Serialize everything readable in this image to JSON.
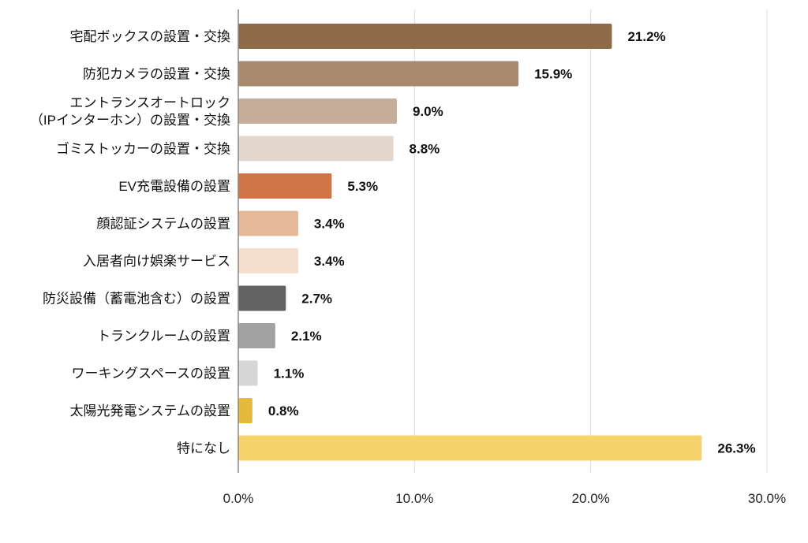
{
  "chart_data": {
    "type": "bar",
    "orientation": "horizontal",
    "title": "",
    "xlabel": "",
    "ylabel": "",
    "xlim": [
      0,
      30
    ],
    "x_ticks": [
      0,
      10,
      20,
      30
    ],
    "x_tick_labels": [
      "0.0%",
      "10.0%",
      "20.0%",
      "30.0%"
    ],
    "grid": true,
    "legend": "none",
    "categories": [
      [
        "宅配ボックスの設置・交換"
      ],
      [
        "防犯カメラの設置・交換"
      ],
      [
        "エントランスオートロック",
        "（IPインターホン）の設置・交換"
      ],
      [
        "ゴミストッカーの設置・交換"
      ],
      [
        "EV充電設備の設置"
      ],
      [
        "顔認証システムの設置"
      ],
      [
        "入居者向け娯楽サービス"
      ],
      [
        "防災設備（蓄電池含む）の設置"
      ],
      [
        "トランクルームの設置"
      ],
      [
        "ワーキングスペースの設置"
      ],
      [
        "太陽光発電システムの設置"
      ],
      [
        "特になし"
      ]
    ],
    "values": [
      21.2,
      15.9,
      9.0,
      8.8,
      5.3,
      3.4,
      3.4,
      2.7,
      2.1,
      1.1,
      0.8,
      26.3
    ],
    "value_labels": [
      "21.2%",
      "15.9%",
      "9.0%",
      "8.8%",
      "5.3%",
      "3.4%",
      "3.4%",
      "2.7%",
      "2.1%",
      "1.1%",
      "0.8%",
      "26.3%"
    ],
    "colors": [
      "#8e6a48",
      "#a88a6e",
      "#c6ad9a",
      "#e3d7cd",
      "#d07545",
      "#e6b89a",
      "#f4dece",
      "#636363",
      "#a2a2a2",
      "#d6d6d6",
      "#e5b93a",
      "#f7d36d"
    ]
  }
}
